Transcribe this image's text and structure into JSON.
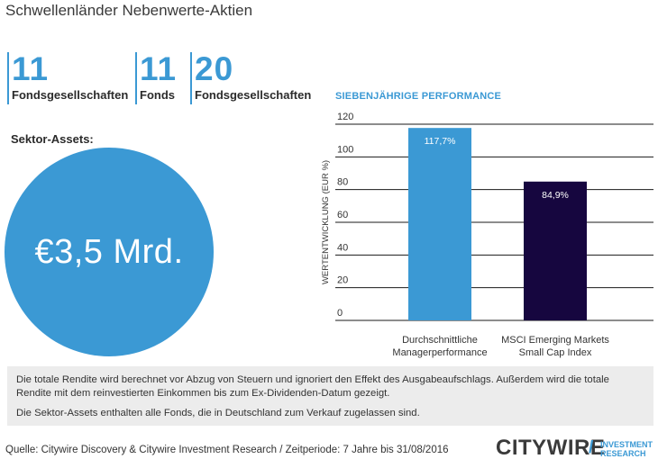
{
  "title": "Schwellenländer Nebenwerte-Aktien",
  "stats": [
    {
      "value": "11",
      "label": "Fondsgesellschaften"
    },
    {
      "value": "11",
      "label": "Fonds"
    },
    {
      "value": "20",
      "label": "Fondsgesellschaften"
    }
  ],
  "sektor": {
    "label": "Sektor-Assets:",
    "value": "€3,5 Mrd."
  },
  "perf_title": "SIEBENJÄHRIGE PERFORMANCE",
  "chart_data": {
    "type": "bar",
    "categories": [
      [
        "Durchschnittliche",
        "Managerperformance"
      ],
      [
        "MSCI Emerging Markets",
        "Small Cap Index"
      ]
    ],
    "values": [
      117.7,
      84.9
    ],
    "data_labels": [
      "117,7%",
      "84,9%"
    ],
    "ylabel": "WERTENTWICKLUNG (EUR %)",
    "yticks": [
      0,
      20,
      40,
      60,
      80,
      100,
      120
    ],
    "ylim": [
      0,
      120
    ],
    "grid": true,
    "colors": [
      "#3b99d4",
      "#16063f"
    ]
  },
  "notes": [
    "Die totale Rendite wird berechnet vor Abzug von Steuern und ignoriert den Effekt des Ausgabeaufschlags. Außerdem wird die totale Rendite mit dem reinvestierten Einkommen bis zum Ex-Dividenden-Datum gezeigt.",
    "Die Sektor-Assets enthalten alle Fonds, die in Deutschland zum Verkauf zugelassen sind."
  ],
  "source": "Quelle: Citywire Discovery & Citywire Investment Research / Zeitperiode: 7 Jahre bis 31/08/2016",
  "logo": {
    "word": "CITYWIRE",
    "slash": "/",
    "sub_line1": "INVESTMENT",
    "sub_line2": "RESEARCH"
  }
}
